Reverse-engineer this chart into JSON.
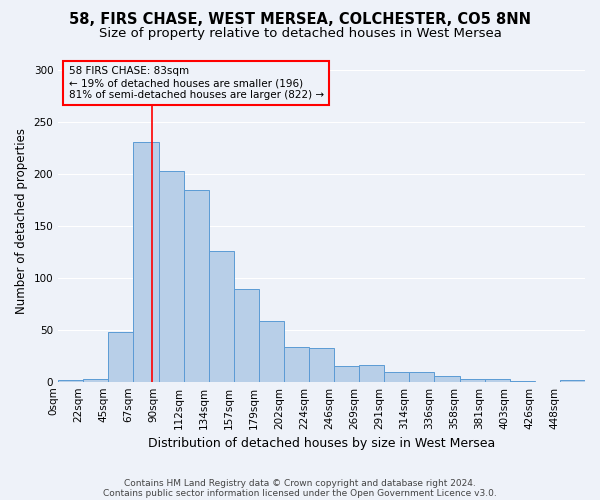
{
  "title1": "58, FIRS CHASE, WEST MERSEA, COLCHESTER, CO5 8NN",
  "title2": "Size of property relative to detached houses in West Mersea",
  "xlabel": "Distribution of detached houses by size in West Mersea",
  "ylabel": "Number of detached properties",
  "footnote1": "Contains HM Land Registry data © Crown copyright and database right 2024.",
  "footnote2": "Contains public sector information licensed under the Open Government Licence v3.0.",
  "bin_labels": [
    "0sqm",
    "22sqm",
    "45sqm",
    "67sqm",
    "90sqm",
    "112sqm",
    "134sqm",
    "157sqm",
    "179sqm",
    "202sqm",
    "224sqm",
    "246sqm",
    "269sqm",
    "291sqm",
    "314sqm",
    "336sqm",
    "358sqm",
    "381sqm",
    "403sqm",
    "426sqm",
    "448sqm"
  ],
  "bar_values": [
    2,
    3,
    48,
    231,
    203,
    185,
    126,
    89,
    58,
    33,
    32,
    15,
    16,
    9,
    9,
    5,
    3,
    3,
    1,
    0,
    2
  ],
  "bar_color": "#b8cfe8",
  "bar_edge_color": "#5b9bd5",
  "red_line_x": 3.727,
  "annotation_text": "58 FIRS CHASE: 83sqm\n← 19% of detached houses are smaller (196)\n81% of semi-detached houses are larger (822) →",
  "ylim": [
    0,
    310
  ],
  "yticks": [
    0,
    50,
    100,
    150,
    200,
    250,
    300
  ],
  "background_color": "#eef2f9",
  "grid_color": "#ffffff",
  "title_fontsize": 10.5,
  "subtitle_fontsize": 9.5,
  "ylabel_fontsize": 8.5,
  "xlabel_fontsize": 9,
  "tick_fontsize": 7.5,
  "annot_fontsize": 7.5,
  "footnote_fontsize": 6.5
}
